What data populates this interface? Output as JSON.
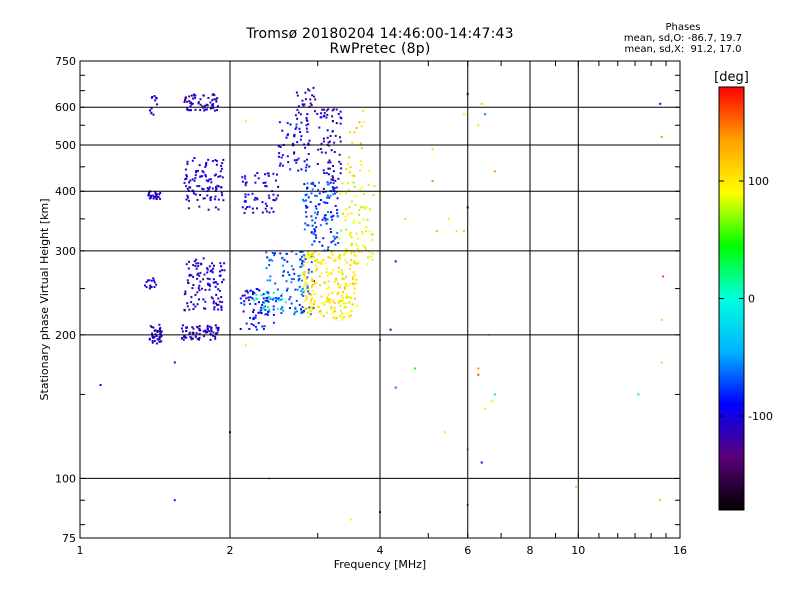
{
  "chart_data": {
    "type": "scatter",
    "title": "Tromsø 20180204 14:46:00-14:47:43",
    "subtitle": "RwPretec (8p)",
    "xlabel": "Frequency [MHz]",
    "ylabel": "Stationary phase Virtual Height [km]",
    "xscale": "log",
    "yscale": "log",
    "xlim": [
      1,
      16
    ],
    "ylim": [
      75,
      750
    ],
    "xticks": [
      "1",
      "2",
      "4",
      "6",
      "8",
      "10",
      "16"
    ],
    "yticks": [
      "75",
      "100",
      "200",
      "300",
      "400",
      "500",
      "600",
      "750"
    ],
    "grid": true,
    "stats": {
      "title": "Phases",
      "line_o": "mean, sd,O: -86.7, 19.7",
      "line_x": "mean, sd,X:  91.2, 17.0"
    },
    "colorbar": {
      "label": "[deg]",
      "range": [
        -180,
        180
      ],
      "ticks": [
        "100",
        "0",
        "-100"
      ],
      "colors": [
        "#000000",
        "#5a007a",
        "#0000ff",
        "#00b4ff",
        "#00ffe0",
        "#00ff00",
        "#ffff00",
        "#ffa000",
        "#ff0000"
      ]
    },
    "clusters": [
      {
        "f": [
          1.38,
          1.46
        ],
        "h": [
          190,
          210
        ],
        "phase": -110,
        "n": 40
      },
      {
        "f": [
          1.35,
          1.44
        ],
        "h": [
          250,
          265
        ],
        "phase": -110,
        "n": 15
      },
      {
        "f": [
          1.35,
          1.45
        ],
        "h": [
          385,
          400
        ],
        "phase": -110,
        "n": 25
      },
      {
        "f": [
          1.38,
          1.43
        ],
        "h": [
          575,
          640
        ],
        "phase": -110,
        "n": 12
      },
      {
        "f": [
          1.6,
          1.9
        ],
        "h": [
          195,
          210
        ],
        "phase": -110,
        "n": 70
      },
      {
        "f": [
          1.62,
          1.95
        ],
        "h": [
          225,
          290
        ],
        "phase": -105,
        "n": 110
      },
      {
        "f": [
          1.62,
          1.95
        ],
        "h": [
          365,
          470
        ],
        "phase": -105,
        "n": 100
      },
      {
        "f": [
          1.62,
          1.9
        ],
        "h": [
          590,
          640
        ],
        "phase": -110,
        "n": 60
      },
      {
        "f": [
          2.1,
          2.45
        ],
        "h": [
          205,
          250
        ],
        "phase": -90,
        "n": 70
      },
      {
        "f": [
          2.1,
          2.5
        ],
        "h": [
          360,
          440
        ],
        "phase": -100,
        "n": 60
      },
      {
        "f": [
          2.5,
          2.9
        ],
        "h": [
          440,
          560
        ],
        "phase": -95,
        "n": 60
      },
      {
        "f": [
          2.7,
          3.0
        ],
        "h": [
          560,
          660
        ],
        "phase": -110,
        "n": 30
      },
      {
        "f": [
          2.35,
          2.95
        ],
        "h": [
          220,
          300
        ],
        "phase": -70,
        "n": 120
      },
      {
        "f": [
          2.8,
          3.3
        ],
        "h": [
          300,
          420
        ],
        "phase": -75,
        "n": 120
      },
      {
        "f": [
          3.0,
          3.35
        ],
        "h": [
          420,
          600
        ],
        "phase": -110,
        "n": 70
      },
      {
        "f": [
          2.2,
          2.6
        ],
        "h": [
          225,
          245
        ],
        "phase": 0,
        "n": 20
      },
      {
        "f": [
          2.8,
          3.6
        ],
        "h": [
          215,
          300
        ],
        "phase": 100,
        "n": 220
      },
      {
        "f": [
          3.3,
          3.9
        ],
        "h": [
          280,
          420
        ],
        "phase": 90,
        "n": 80
      },
      {
        "f": [
          3.4,
          3.8
        ],
        "h": [
          430,
          560
        ],
        "phase": 110,
        "n": 20
      }
    ],
    "scattered": [
      [
        1.1,
        157,
        -100
      ],
      [
        1.55,
        175,
        -110
      ],
      [
        1.55,
        90,
        -80
      ],
      [
        2.0,
        125,
        -110
      ],
      [
        2.15,
        190,
        100
      ],
      [
        2.15,
        560,
        100
      ],
      [
        2.4,
        100,
        120
      ],
      [
        3.5,
        82,
        100
      ],
      [
        3.7,
        590,
        110
      ],
      [
        3.9,
        410,
        110
      ],
      [
        4.0,
        195,
        -60
      ],
      [
        4.0,
        85,
        -110
      ],
      [
        4.2,
        205,
        -110
      ],
      [
        4.3,
        285,
        -100
      ],
      [
        4.3,
        155,
        -60
      ],
      [
        4.5,
        350,
        110
      ],
      [
        4.7,
        170,
        50
      ],
      [
        5.1,
        490,
        110
      ],
      [
        5.1,
        420,
        140
      ],
      [
        5.4,
        125,
        100
      ],
      [
        5.5,
        350,
        100
      ],
      [
        5.7,
        330,
        100
      ],
      [
        5.9,
        580,
        100
      ],
      [
        5.9,
        330,
        110
      ],
      [
        6.0,
        640,
        -100
      ],
      [
        6.0,
        370,
        -110
      ],
      [
        6.0,
        115,
        140
      ],
      [
        6.0,
        88,
        -60
      ],
      [
        6.3,
        170,
        140
      ],
      [
        6.4,
        610,
        120
      ],
      [
        6.4,
        108,
        -110
      ],
      [
        6.5,
        140,
        100
      ],
      [
        6.6,
        200,
        110
      ],
      [
        6.8,
        440,
        140
      ],
      [
        6.8,
        150,
        30
      ],
      [
        6.7,
        145,
        100
      ],
      [
        6.3,
        165,
        160
      ],
      [
        13.2,
        150,
        20
      ],
      [
        14.6,
        610,
        -110
      ],
      [
        14.7,
        520,
        140
      ],
      [
        14.8,
        265,
        160
      ],
      [
        14.7,
        215,
        110
      ],
      [
        14.7,
        175,
        110
      ],
      [
        14.6,
        90,
        120
      ],
      [
        9.9,
        96,
        110
      ],
      [
        6.5,
        580,
        -60
      ],
      [
        6.3,
        550,
        110
      ],
      [
        5.2,
        330,
        130
      ]
    ]
  }
}
